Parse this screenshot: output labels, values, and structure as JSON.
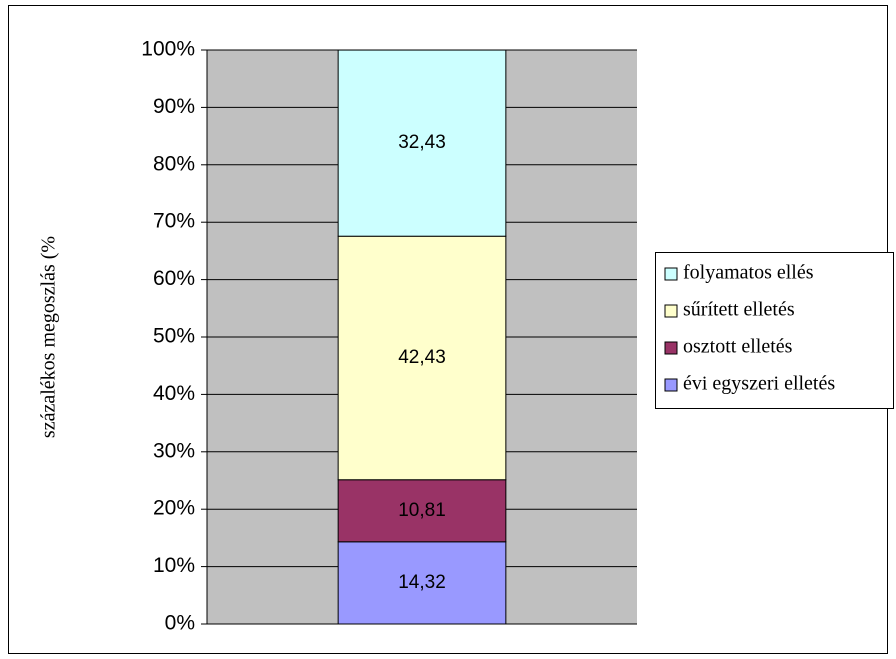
{
  "chart_data": {
    "type": "stacked_bar",
    "y_label": "százalékos megoszlás (%",
    "categories": [
      null
    ],
    "series": [
      {
        "name": "évi egyszeri elletés",
        "color": "#9999ff",
        "values": [
          14.32
        ],
        "value_labels": [
          "14,32"
        ]
      },
      {
        "name": "osztott elletés",
        "color": "#993366",
        "values": [
          10.81
        ],
        "value_labels": [
          "10,81"
        ]
      },
      {
        "name": "sűrített elletés",
        "color": "#ffffcc",
        "values": [
          42.43
        ],
        "value_labels": [
          "42,43"
        ]
      },
      {
        "name": "folyamatos ellés",
        "color": "#ccffff",
        "values": [
          32.43
        ],
        "value_labels": [
          "32,43"
        ]
      }
    ],
    "ylim": [
      0,
      100
    ],
    "yticks": [
      {
        "value": 0,
        "label": "0%"
      },
      {
        "value": 10,
        "label": "10%"
      },
      {
        "value": 20,
        "label": "20%"
      },
      {
        "value": 30,
        "label": "30%"
      },
      {
        "value": 40,
        "label": "40%"
      },
      {
        "value": 50,
        "label": "50%"
      },
      {
        "value": 60,
        "label": "60%"
      },
      {
        "value": 70,
        "label": "70%"
      },
      {
        "value": 80,
        "label": "80%"
      },
      {
        "value": 90,
        "label": "90%"
      },
      {
        "value": 100,
        "label": "100%"
      }
    ],
    "grid": true,
    "legend": "right",
    "plot_background": "#c0c0c0"
  }
}
